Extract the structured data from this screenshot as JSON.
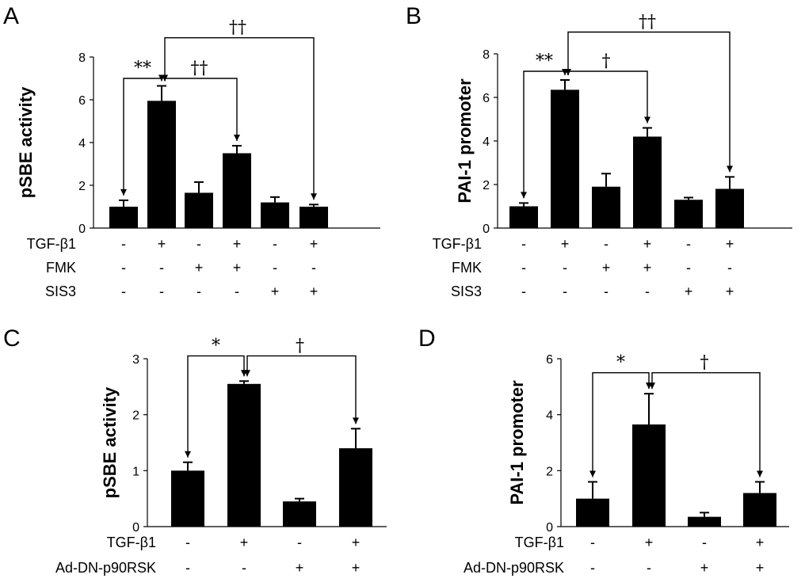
{
  "chart_data": [
    {
      "panel": "A",
      "type": "bar",
      "ylabel": "pSBE activity",
      "ylim": [
        0,
        8
      ],
      "yticks": [
        "0",
        "2",
        "4",
        "6",
        "8"
      ],
      "values": [
        1.0,
        5.95,
        1.65,
        3.5,
        1.2,
        1.0
      ],
      "errors": [
        0.3,
        0.7,
        0.5,
        0.35,
        0.25,
        0.1
      ],
      "conditions": [
        {
          "label": "TGF-β1",
          "signs": [
            "-",
            "+",
            "-",
            "+",
            "-",
            "+"
          ]
        },
        {
          "label": "FMK",
          "signs": [
            "-",
            "-",
            "+",
            "+",
            "-",
            "-"
          ]
        },
        {
          "label": "SIS3",
          "signs": [
            "-",
            "-",
            "-",
            "-",
            "+",
            "+"
          ]
        }
      ],
      "annotations": [
        {
          "from": 0,
          "to": 1,
          "text": "**",
          "y": 7.0
        },
        {
          "from": 1,
          "to": 3,
          "text": "††",
          "y": 7.0
        },
        {
          "from": 1,
          "to": 5,
          "text": "††",
          "y": 8.9
        }
      ]
    },
    {
      "panel": "B",
      "type": "bar",
      "ylabel": "PAI-1 promoter",
      "ylim": [
        0,
        8
      ],
      "yticks": [
        "0",
        "2",
        "4",
        "6",
        "8"
      ],
      "values": [
        1.0,
        6.35,
        1.9,
        4.2,
        1.3,
        1.8
      ],
      "errors": [
        0.15,
        0.45,
        0.6,
        0.4,
        0.1,
        0.55
      ],
      "conditions": [
        {
          "label": "TGF-β1",
          "signs": [
            "-",
            "+",
            "-",
            "+",
            "-",
            "+"
          ]
        },
        {
          "label": "FMK",
          "signs": [
            "-",
            "-",
            "+",
            "+",
            "-",
            "-"
          ]
        },
        {
          "label": "SIS3",
          "signs": [
            "-",
            "-",
            "-",
            "-",
            "+",
            "+"
          ]
        }
      ],
      "annotations": [
        {
          "from": 0,
          "to": 1,
          "text": "**",
          "y": 7.2
        },
        {
          "from": 1,
          "to": 3,
          "text": "†",
          "y": 7.2
        },
        {
          "from": 1,
          "to": 5,
          "text": "††",
          "y": 9.0
        }
      ]
    },
    {
      "panel": "C",
      "type": "bar",
      "ylabel": "pSBE activity",
      "ylim": [
        0,
        3
      ],
      "yticks": [
        "0",
        "1",
        "2",
        "3"
      ],
      "values": [
        1.0,
        2.55,
        0.45,
        1.4
      ],
      "errors": [
        0.15,
        0.05,
        0.05,
        0.35
      ],
      "conditions": [
        {
          "label": "TGF-β1",
          "signs": [
            "-",
            "+",
            "-",
            "+"
          ]
        },
        {
          "label": "Ad-DN-p90RSK",
          "signs": [
            "-",
            "-",
            "+",
            "+"
          ]
        }
      ],
      "annotations": [
        {
          "from": 0,
          "to": 1,
          "text": "*",
          "y": 3.05
        },
        {
          "from": 1,
          "to": 3,
          "text": "†",
          "y": 3.05
        }
      ]
    },
    {
      "panel": "D",
      "type": "bar",
      "ylabel": "PAI-1 promoter",
      "ylim": [
        0,
        6
      ],
      "yticks": [
        "0",
        "2",
        "4",
        "6"
      ],
      "values": [
        1.0,
        3.65,
        0.35,
        1.2
      ],
      "errors": [
        0.6,
        1.1,
        0.15,
        0.4
      ],
      "conditions": [
        {
          "label": "TGF-β1",
          "signs": [
            "-",
            "+",
            "-",
            "+"
          ]
        },
        {
          "label": "Ad-DN-p90RSK",
          "signs": [
            "-",
            "-",
            "+",
            "+"
          ]
        }
      ],
      "annotations": [
        {
          "from": 0,
          "to": 1,
          "text": "*",
          "y": 5.5
        },
        {
          "from": 1,
          "to": 3,
          "text": "†",
          "y": 5.5
        }
      ]
    }
  ]
}
